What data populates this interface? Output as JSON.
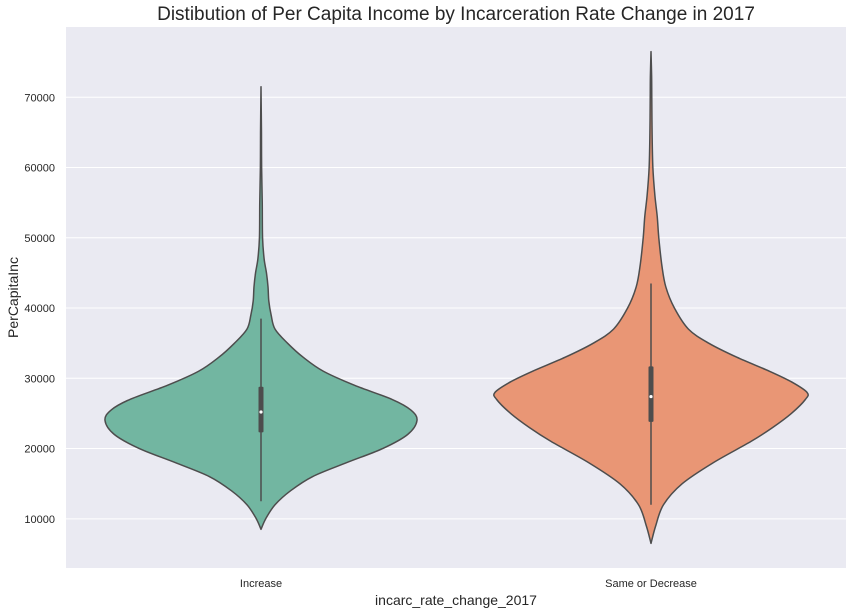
{
  "chart_data": {
    "type": "violin",
    "title": "Distibution of Per Capita Income by Incarceration Rate Change in 2017",
    "xlabel": "incarc_rate_change_2017",
    "ylabel": "PerCapitaInc",
    "ylim": [
      3000,
      80000
    ],
    "yticks": [
      10000,
      20000,
      30000,
      40000,
      50000,
      60000,
      70000
    ],
    "ytick_labels": [
      "10000",
      "20000",
      "30000",
      "40000",
      "50000",
      "60000",
      "70000"
    ],
    "grid": true,
    "categories": [
      "Increase",
      "Same or Decrease"
    ],
    "series": [
      {
        "category": "Increase",
        "color": "#72b6a1",
        "min": 8500,
        "max": 71500,
        "whisker_low": 12500,
        "whisker_high": 38500,
        "q1": 22300,
        "median": 25200,
        "q3": 28800,
        "profile": [
          [
            8500,
            0.0
          ],
          [
            10000,
            0.03
          ],
          [
            12000,
            0.09
          ],
          [
            14000,
            0.19
          ],
          [
            16000,
            0.33
          ],
          [
            18000,
            0.55
          ],
          [
            20000,
            0.78
          ],
          [
            22000,
            0.94
          ],
          [
            24000,
            1.0
          ],
          [
            25500,
            0.96
          ],
          [
            27000,
            0.84
          ],
          [
            29000,
            0.6
          ],
          [
            31000,
            0.4
          ],
          [
            33000,
            0.27
          ],
          [
            35000,
            0.17
          ],
          [
            37000,
            0.09
          ],
          [
            39000,
            0.065
          ],
          [
            41000,
            0.05
          ],
          [
            43000,
            0.045
          ],
          [
            45000,
            0.035
          ],
          [
            47000,
            0.02
          ],
          [
            50000,
            0.01
          ],
          [
            55000,
            0.008
          ],
          [
            60000,
            0.004
          ],
          [
            65000,
            0.003
          ],
          [
            71500,
            0.0
          ]
        ]
      },
      {
        "category": "Same or Decrease",
        "color": "#e99675",
        "min": 6500,
        "max": 76500,
        "whisker_low": 12000,
        "whisker_high": 43500,
        "q1": 23800,
        "median": 27400,
        "q3": 31700,
        "profile": [
          [
            6500,
            0.0
          ],
          [
            9000,
            0.03
          ],
          [
            12000,
            0.08
          ],
          [
            15000,
            0.2
          ],
          [
            18000,
            0.4
          ],
          [
            21000,
            0.64
          ],
          [
            23000,
            0.78
          ],
          [
            25000,
            0.9
          ],
          [
            27000,
            0.99
          ],
          [
            28000,
            1.0
          ],
          [
            29500,
            0.9
          ],
          [
            31000,
            0.76
          ],
          [
            33000,
            0.55
          ],
          [
            35000,
            0.37
          ],
          [
            37000,
            0.24
          ],
          [
            40000,
            0.15
          ],
          [
            43000,
            0.095
          ],
          [
            46000,
            0.07
          ],
          [
            50000,
            0.05
          ],
          [
            53000,
            0.04
          ],
          [
            56000,
            0.025
          ],
          [
            60000,
            0.012
          ],
          [
            65000,
            0.007
          ],
          [
            70000,
            0.005
          ],
          [
            73000,
            0.004
          ],
          [
            76500,
            0.0
          ]
        ]
      }
    ]
  }
}
